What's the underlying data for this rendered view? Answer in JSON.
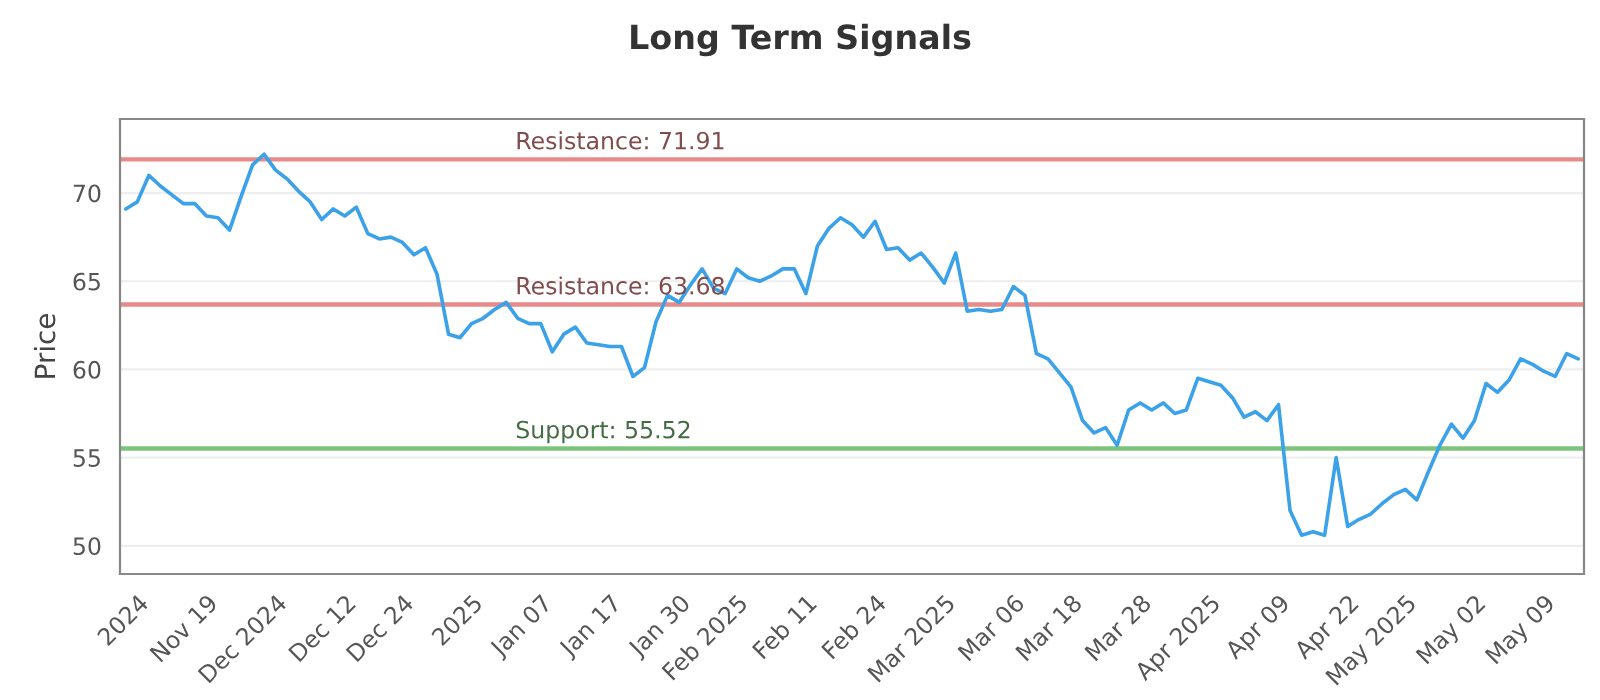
{
  "chart_data": {
    "type": "line",
    "title": "Long Term Signals",
    "ylabel": "Price",
    "categories": [
      null,
      "2024",
      null,
      null,
      null,
      null,
      null,
      "Nov 19",
      null,
      null,
      null,
      null,
      null,
      "Dec 2024",
      null,
      null,
      null,
      null,
      null,
      "Dec 12",
      null,
      null,
      null,
      null,
      "Dec 24",
      null,
      null,
      null,
      null,
      null,
      "2025",
      null,
      null,
      null,
      null,
      null,
      "Jan 07",
      null,
      null,
      null,
      null,
      null,
      "Jan 17",
      null,
      null,
      null,
      null,
      null,
      "Jan 30",
      null,
      null,
      null,
      null,
      "Feb 2025",
      null,
      null,
      null,
      null,
      null,
      "Feb 11",
      null,
      null,
      null,
      null,
      null,
      "Feb 24",
      null,
      null,
      null,
      null,
      null,
      "Mar 2025",
      null,
      null,
      null,
      null,
      null,
      "Mar 06",
      null,
      null,
      null,
      null,
      "Mar 18",
      null,
      null,
      null,
      null,
      null,
      "Mar 28",
      null,
      null,
      null,
      null,
      null,
      "Apr 2025",
      null,
      null,
      null,
      null,
      null,
      "Apr 09",
      null,
      null,
      null,
      null,
      null,
      "Apr 22",
      null,
      null,
      null,
      null,
      "May 2025",
      null,
      null,
      null,
      null,
      null,
      "May 02",
      null,
      null,
      null,
      null,
      null,
      "May 09",
      null,
      null,
      null
    ],
    "series": [
      {
        "color": "#3ba1e8",
        "values": [
          69.1,
          69.5,
          71.0,
          70.4,
          69.9,
          69.4,
          69.4,
          68.7,
          68.6,
          67.9,
          69.8,
          71.6,
          72.2,
          71.3,
          70.8,
          70.1,
          69.5,
          68.5,
          69.1,
          68.7,
          69.2,
          67.7,
          67.4,
          67.5,
          67.2,
          66.5,
          66.9,
          65.4,
          62.0,
          61.8,
          62.6,
          62.9,
          63.4,
          63.8,
          62.9,
          62.6,
          62.6,
          61.0,
          62.0,
          62.4,
          61.5,
          61.4,
          61.3,
          61.3,
          59.6,
          60.1,
          62.7,
          64.2,
          63.8,
          64.8,
          65.7,
          64.6,
          64.3,
          65.7,
          65.2,
          65.0,
          65.3,
          65.7,
          65.7,
          64.3,
          67.0,
          68.0,
          68.6,
          68.2,
          67.5,
          68.4,
          66.8,
          66.9,
          66.2,
          66.6,
          65.8,
          64.9,
          66.6,
          63.3,
          63.4,
          63.3,
          63.4,
          64.7,
          64.2,
          60.9,
          60.6,
          59.8,
          59.0,
          57.1,
          56.4,
          56.7,
          55.7,
          57.7,
          58.1,
          57.7,
          58.1,
          57.5,
          57.7,
          59.5,
          59.3,
          59.1,
          58.4,
          57.3,
          57.6,
          57.1,
          58.0,
          52.0,
          50.6,
          50.8,
          50.6,
          55.0,
          51.1,
          51.5,
          51.8,
          52.4,
          52.9,
          53.2,
          52.6,
          54.2,
          55.7,
          56.9,
          56.1,
          57.1,
          59.2,
          58.7,
          59.4,
          60.6,
          60.3,
          59.9,
          59.6,
          60.9,
          60.6
        ]
      }
    ],
    "ylim": [
      48.4,
      74.2
    ],
    "yticks": [
      50,
      55,
      60,
      65,
      70
    ],
    "grid": "y",
    "marker": "none",
    "line_style": "solid",
    "ref_lines": [
      {
        "axis": "y",
        "value": 71.91,
        "label": "Resistance: 71.91",
        "color": "#e88a8a"
      },
      {
        "axis": "y",
        "value": 63.68,
        "label": "Resistance: 63.68",
        "color": "#e88a8a"
      },
      {
        "axis": "y",
        "value": 55.52,
        "label": "Support: 55.52",
        "color": "#7cc47c"
      }
    ]
  }
}
